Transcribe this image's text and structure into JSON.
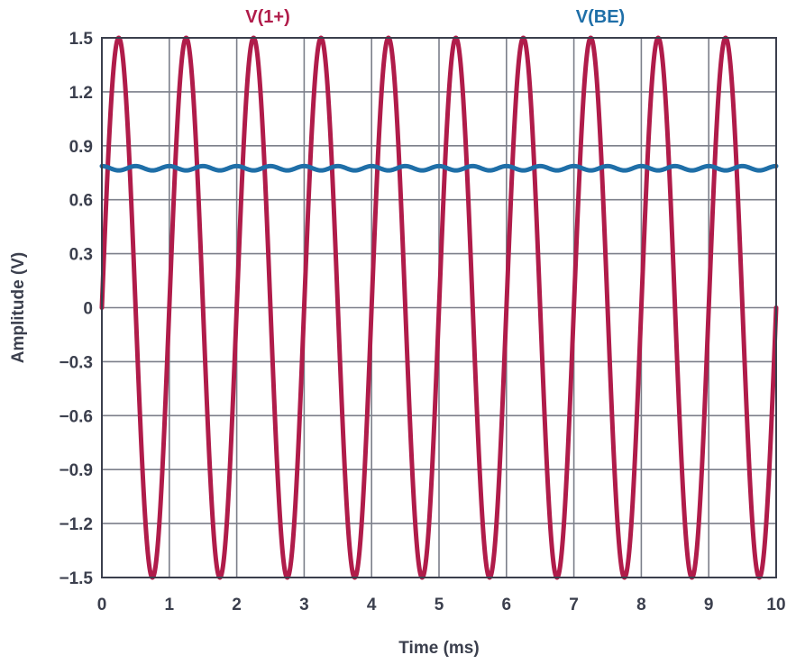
{
  "chart_data": {
    "type": "line",
    "xlabel": "Time (ms)",
    "ylabel": "Amplitude (V)",
    "xlim": [
      0,
      10
    ],
    "ylim": [
      -1.5,
      1.5
    ],
    "x_ticks": [
      0,
      1,
      2,
      3,
      4,
      5,
      6,
      7,
      8,
      9,
      10
    ],
    "x_tick_labels": [
      "0",
      "1",
      "2",
      "3",
      "4",
      "5",
      "6",
      "7",
      "8",
      "9",
      "10"
    ],
    "y_ticks": [
      1.5,
      1.2,
      0.9,
      0.6,
      0.3,
      0,
      -0.3,
      -0.6,
      -0.9,
      -1.2,
      -1.5
    ],
    "y_tick_labels": [
      "1.5",
      "1.2",
      "0.9",
      "0.6",
      "0.3",
      "0",
      "−0.3",
      "−0.6",
      "−0.9",
      "−1.2",
      "−1.5"
    ],
    "grid": true,
    "legend_placement": "top",
    "series": [
      {
        "name": "V(1+)",
        "color": "#b01c4a",
        "shape": "sine",
        "amplitude": 1.5,
        "offset": 0,
        "frequency_khz": 1,
        "phase_deg": 0,
        "x_range": [
          0,
          10
        ]
      },
      {
        "name": "V(BE)",
        "color": "#1f6fa8",
        "shape": "sine",
        "amplitude": 0.012,
        "offset": 0.775,
        "frequency_khz": 2,
        "phase_deg": 90,
        "x_range": [
          0,
          10
        ]
      }
    ]
  }
}
